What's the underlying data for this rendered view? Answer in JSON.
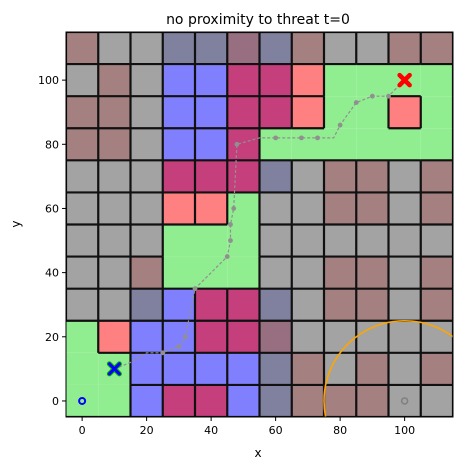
{
  "chart_data": {
    "type": "scatter",
    "title": "no proximity to threat t=0",
    "xlabel": "x",
    "ylabel": "y",
    "xlim": [
      -5,
      115
    ],
    "ylim": [
      -5,
      115
    ],
    "xticks": [
      0,
      20,
      40,
      60,
      80,
      100
    ],
    "yticks": [
      0,
      20,
      40,
      60,
      80,
      100
    ],
    "grid": false,
    "cell_size": 10,
    "cell_origin": -5,
    "cell_rows_top_to_bottom": [
      [
        "R",
        "G",
        "G",
        "S",
        "S",
        "M",
        "S",
        "R",
        "G",
        "G",
        "R",
        "R"
      ],
      [
        "G",
        "R",
        "G",
        "B",
        "B",
        "P",
        "P",
        "O",
        "L",
        "L",
        "L",
        "L"
      ],
      [
        "R",
        "R",
        "G",
        "B",
        "B",
        "P",
        "P",
        "O",
        "L",
        "L",
        "O",
        "L"
      ],
      [
        "R",
        "R",
        "G",
        "B",
        "B",
        "P",
        "L",
        "L",
        "L",
        "L",
        "L",
        "L"
      ],
      [
        "G",
        "G",
        "G",
        "P",
        "P",
        "P",
        "S",
        "G",
        "R",
        "R",
        "G",
        "R"
      ],
      [
        "G",
        "G",
        "G",
        "O",
        "O",
        "L",
        "G",
        "G",
        "R",
        "R",
        "G",
        "R"
      ],
      [
        "G",
        "G",
        "G",
        "L",
        "L",
        "L",
        "G",
        "G",
        "G",
        "G",
        "G",
        "G"
      ],
      [
        "G",
        "G",
        "R",
        "L",
        "L",
        "L",
        "G",
        "G",
        "R",
        "R",
        "G",
        "R"
      ],
      [
        "G",
        "G",
        "S",
        "B",
        "P",
        "P",
        "S",
        "G",
        "R",
        "R",
        "G",
        "R"
      ],
      [
        "L",
        "O",
        "B",
        "B",
        "P",
        "P",
        "M",
        "G",
        "G",
        "G",
        "G",
        "G"
      ],
      [
        "L",
        "L",
        "B",
        "B",
        "B",
        "B",
        "S",
        "R",
        "G",
        "R",
        "G",
        "R"
      ],
      [
        "L",
        "L",
        "B",
        "P",
        "P",
        "B",
        "S",
        "R",
        "R",
        "R",
        "G",
        "G"
      ]
    ],
    "cell_colors": {
      "G": "#a3a3a3",
      "R": "#a58080",
      "B": "#8080ff",
      "P": "#c43f7c",
      "S": "#80809f",
      "M": "#986f80",
      "O": "#ff8080",
      "L": "#90ee90"
    },
    "path": {
      "color": "#909090",
      "x": [
        10,
        15,
        20,
        25,
        30,
        32,
        35,
        40,
        45,
        46,
        46,
        47,
        48,
        55,
        60,
        65,
        68,
        73,
        78,
        80,
        85,
        90,
        95,
        100
      ],
      "y": [
        10,
        12,
        15,
        15,
        17,
        20,
        35,
        40,
        45,
        50,
        55,
        60,
        80,
        82,
        82,
        82,
        82,
        82,
        82,
        86,
        93,
        95,
        95,
        100
      ]
    },
    "path_markers": {
      "x": [
        10,
        25,
        30,
        32,
        35,
        45,
        46,
        46,
        47,
        48,
        60,
        68,
        73,
        80,
        85,
        90,
        95
      ],
      "y": [
        10,
        15,
        17,
        20,
        35,
        45,
        50,
        55,
        60,
        80,
        82,
        82,
        82,
        86,
        93,
        95,
        95
      ]
    },
    "start": {
      "x": 10,
      "y": 10,
      "color": "#0000ff",
      "outline": "#00aa00"
    },
    "goal": {
      "x": 100,
      "y": 100,
      "color": "#ff0000"
    },
    "origin_marker": {
      "x": 0,
      "y": 0,
      "color": "#0000ff"
    },
    "threat": {
      "x": 100,
      "y": 0,
      "radius": 25,
      "color": "#ffa500",
      "marker_color": "#808080"
    }
  }
}
